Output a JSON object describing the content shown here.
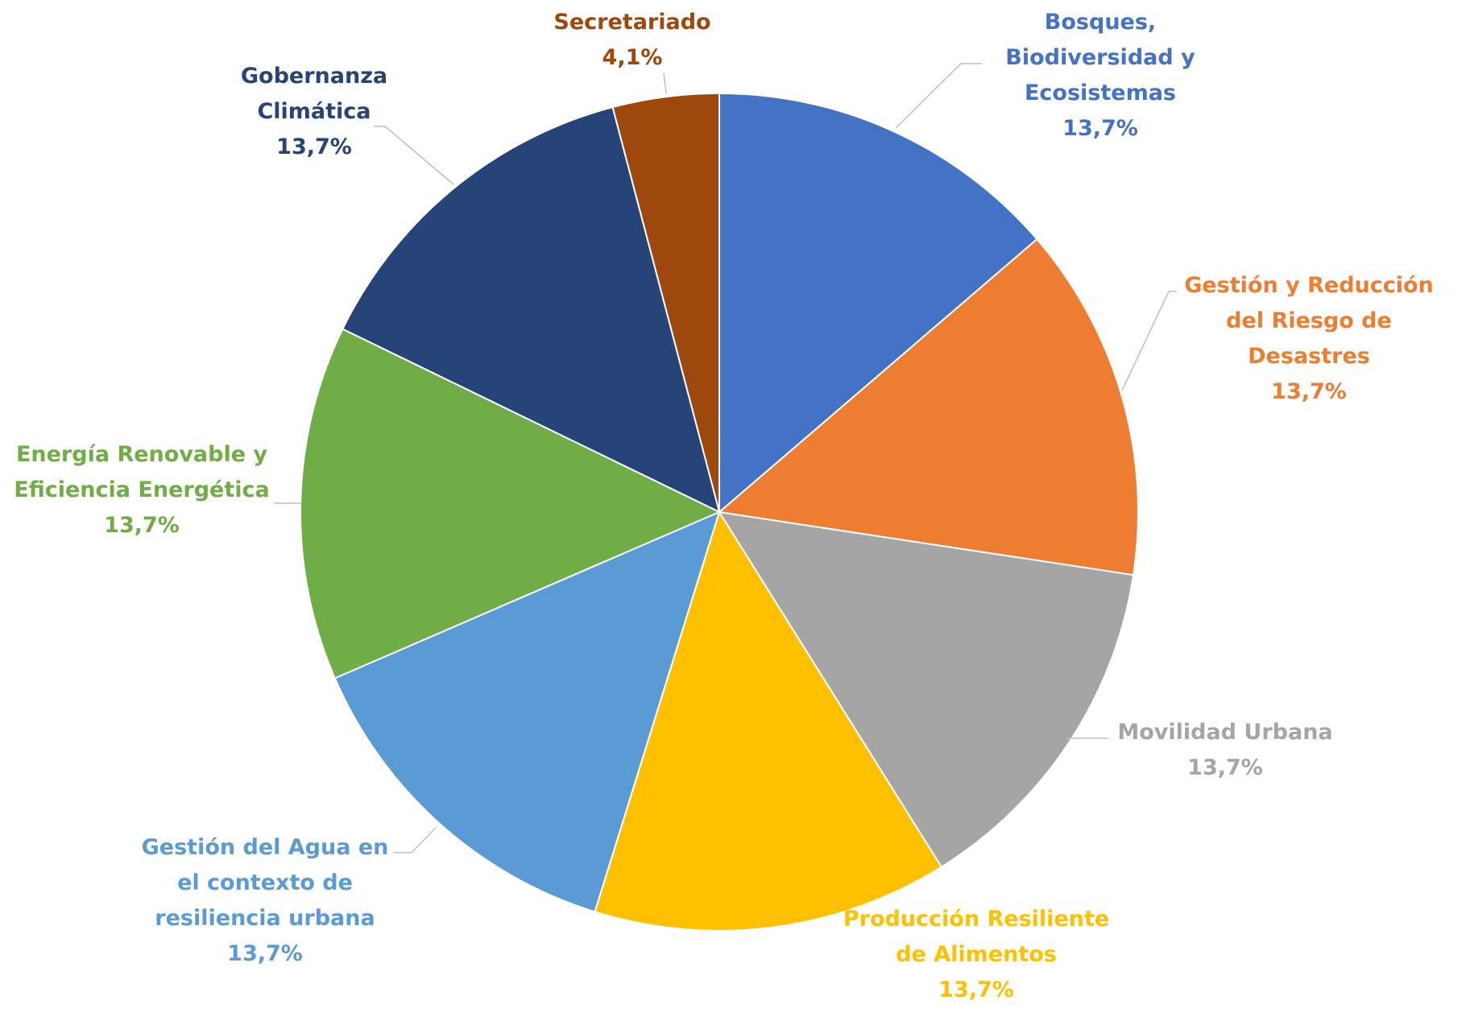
{
  "chart_data": {
    "type": "pie",
    "categories": [
      "Bosques,\nBiodiversidad y\nEcosistemas",
      "Gestión y Reducción\ndel Riesgo de\nDesastres",
      "Movilidad Urbana",
      "Producción Resiliente\nde Alimentos",
      "Gestión del Agua en\nel contexto de\nresiliencia urbana",
      "Energía Renovable y\nEficiencia Energética",
      "Gobernanza\nClimática",
      "Secretariado"
    ],
    "values": [
      13.7,
      13.7,
      13.7,
      13.7,
      13.7,
      13.7,
      13.7,
      4.1
    ],
    "value_labels": [
      "13,7%",
      "13,7%",
      "13,7%",
      "13,7%",
      "13,7%",
      "13,7%",
      "13,7%",
      "4,1%"
    ],
    "colors": [
      "#4472c4",
      "#ed7d31",
      "#a5a5a5",
      "#ffc000",
      "#5b9bd5",
      "#70ad47",
      "#264478",
      "#9e480e"
    ]
  }
}
